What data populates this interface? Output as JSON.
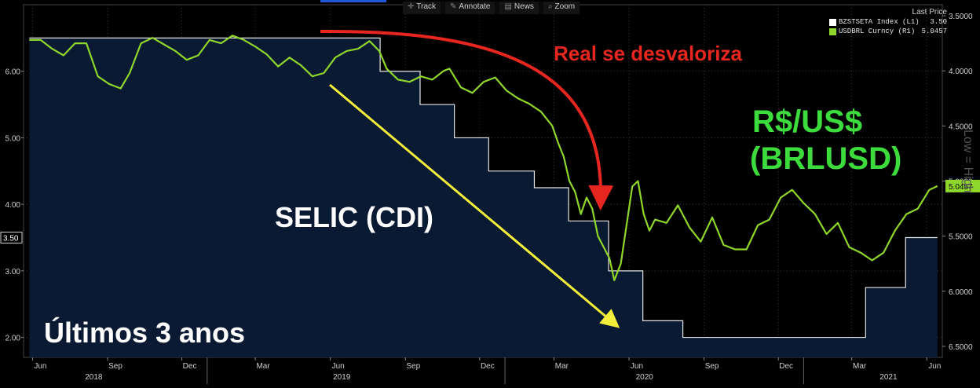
{
  "toolbar": {
    "items": [
      {
        "label": "Track"
      },
      {
        "label": "Annotate"
      },
      {
        "label": "News"
      },
      {
        "label": "Zoom"
      }
    ]
  },
  "legend": {
    "header": "Last Price",
    "entries": [
      {
        "label": "BZSTSETA Index  (L1)",
        "value": "3.50",
        "color": "#ffffff"
      },
      {
        "label": "USDBRL Curncy  (R1)",
        "value": "5.0457",
        "color": "#8fd62b"
      }
    ]
  },
  "annotations": {
    "real_label": "Real se desvaloriza",
    "rs_label_line1": "R$/US$",
    "rs_label_line2": "(BRLUSD)",
    "selic_label": "SELIC (CDI)",
    "period_label": "Últimos 3 anos",
    "low_high": "Low = High"
  },
  "colors": {
    "background": "#000000",
    "area_fill": "#0b1a33",
    "selic_line": "#e6e6e6",
    "brl_line": "#8fd62b",
    "red_arrow": "#e6261f",
    "yellow_arrow": "#f2ee3a",
    "green_text": "#3ddc3d",
    "grid": "#3a3a3a"
  },
  "chart_data": {
    "type": "line",
    "x_ticks": [
      "Jun",
      "Sep",
      "Dec",
      "Mar",
      "Jun",
      "Sep",
      "Dec",
      "Mar",
      "Jun",
      "Sep",
      "Dec",
      "Mar",
      "Jun"
    ],
    "years": [
      "2018",
      "2019",
      "2020",
      "2021"
    ],
    "left_axis": {
      "ticks": [
        "2.00",
        "3.00",
        "4.00",
        "5.00",
        "6.00"
      ],
      "ylim": [
        1.7,
        7.0
      ],
      "last_value_tag": "3.50"
    },
    "right_axis": {
      "ticks": [
        "3.5000",
        "4.0000",
        "4.5000",
        "5.0000",
        "5.5000",
        "6.0000",
        "6.5000"
      ],
      "ylim": [
        3.4,
        6.6
      ],
      "inverted": true,
      "last_value_tag": "5.0457"
    },
    "series": [
      {
        "name": "BZSTSETA Index",
        "axis": "left",
        "style": "step-area",
        "points": [
          [
            "2018-05-28",
            6.5
          ],
          [
            "2019-07-31",
            6.5
          ],
          [
            "2019-08-01",
            6.0
          ],
          [
            "2019-09-19",
            5.5
          ],
          [
            "2019-10-31",
            5.0
          ],
          [
            "2019-12-12",
            4.5
          ],
          [
            "2020-02-06",
            4.25
          ],
          [
            "2020-03-19",
            3.75
          ],
          [
            "2020-05-07",
            3.0
          ],
          [
            "2020-06-18",
            2.25
          ],
          [
            "2020-08-06",
            2.0
          ],
          [
            "2021-03-18",
            2.75
          ],
          [
            "2021-05-06",
            3.5
          ],
          [
            "2021-06-14",
            3.5
          ]
        ]
      },
      {
        "name": "USDBRL Curncy",
        "axis": "right",
        "style": "line",
        "points": [
          [
            "2018-05-28",
            3.72
          ],
          [
            "2018-06-11",
            3.72
          ],
          [
            "2018-06-25",
            3.8
          ],
          [
            "2018-07-09",
            3.86
          ],
          [
            "2018-07-23",
            3.75
          ],
          [
            "2018-08-06",
            3.75
          ],
          [
            "2018-08-20",
            4.05
          ],
          [
            "2018-09-03",
            4.12
          ],
          [
            "2018-09-17",
            4.16
          ],
          [
            "2018-09-28",
            4.02
          ],
          [
            "2018-10-12",
            3.75
          ],
          [
            "2018-10-26",
            3.7
          ],
          [
            "2018-11-09",
            3.76
          ],
          [
            "2018-11-23",
            3.82
          ],
          [
            "2018-12-07",
            3.9
          ],
          [
            "2018-12-21",
            3.86
          ],
          [
            "2019-01-04",
            3.72
          ],
          [
            "2019-01-18",
            3.75
          ],
          [
            "2019-02-01",
            3.68
          ],
          [
            "2019-02-15",
            3.72
          ],
          [
            "2019-03-01",
            3.78
          ],
          [
            "2019-03-15",
            3.85
          ],
          [
            "2019-03-29",
            3.96
          ],
          [
            "2019-04-12",
            3.88
          ],
          [
            "2019-04-26",
            3.95
          ],
          [
            "2019-05-10",
            4.05
          ],
          [
            "2019-05-24",
            4.02
          ],
          [
            "2019-06-07",
            3.88
          ],
          [
            "2019-06-21",
            3.82
          ],
          [
            "2019-07-05",
            3.8
          ],
          [
            "2019-07-19",
            3.73
          ],
          [
            "2019-07-31",
            3.82
          ],
          [
            "2019-08-09",
            3.98
          ],
          [
            "2019-08-23",
            4.08
          ],
          [
            "2019-09-06",
            4.1
          ],
          [
            "2019-09-20",
            4.05
          ],
          [
            "2019-10-04",
            4.08
          ],
          [
            "2019-10-18",
            4.0
          ],
          [
            "2019-10-25",
            3.98
          ],
          [
            "2019-11-08",
            4.15
          ],
          [
            "2019-11-22",
            4.2
          ],
          [
            "2019-12-06",
            4.1
          ],
          [
            "2019-12-20",
            4.06
          ],
          [
            "2020-01-03",
            4.18
          ],
          [
            "2020-01-17",
            4.25
          ],
          [
            "2020-01-31",
            4.3
          ],
          [
            "2020-02-14",
            4.37
          ],
          [
            "2020-02-28",
            4.5
          ],
          [
            "2020-03-06",
            4.65
          ],
          [
            "2020-03-13",
            4.78
          ],
          [
            "2020-03-20",
            5.0
          ],
          [
            "2020-03-27",
            5.1
          ],
          [
            "2020-04-03",
            5.3
          ],
          [
            "2020-04-10",
            5.15
          ],
          [
            "2020-04-17",
            5.25
          ],
          [
            "2020-04-24",
            5.5
          ],
          [
            "2020-05-01",
            5.6
          ],
          [
            "2020-05-08",
            5.7
          ],
          [
            "2020-05-14",
            5.9
          ],
          [
            "2020-05-22",
            5.75
          ],
          [
            "2020-05-29",
            5.4
          ],
          [
            "2020-06-05",
            5.05
          ],
          [
            "2020-06-12",
            5.0
          ],
          [
            "2020-06-19",
            5.3
          ],
          [
            "2020-06-26",
            5.45
          ],
          [
            "2020-07-03",
            5.35
          ],
          [
            "2020-07-17",
            5.38
          ],
          [
            "2020-07-31",
            5.22
          ],
          [
            "2020-08-14",
            5.42
          ],
          [
            "2020-08-28",
            5.55
          ],
          [
            "2020-09-11",
            5.33
          ],
          [
            "2020-09-25",
            5.58
          ],
          [
            "2020-10-09",
            5.62
          ],
          [
            "2020-10-23",
            5.62
          ],
          [
            "2020-11-06",
            5.4
          ],
          [
            "2020-11-20",
            5.35
          ],
          [
            "2020-12-04",
            5.15
          ],
          [
            "2020-12-18",
            5.08
          ],
          [
            "2021-01-01",
            5.2
          ],
          [
            "2021-01-15",
            5.3
          ],
          [
            "2021-01-29",
            5.48
          ],
          [
            "2021-02-12",
            5.38
          ],
          [
            "2021-02-26",
            5.6
          ],
          [
            "2021-03-12",
            5.65
          ],
          [
            "2021-03-26",
            5.72
          ],
          [
            "2021-04-09",
            5.65
          ],
          [
            "2021-04-23",
            5.45
          ],
          [
            "2021-05-07",
            5.3
          ],
          [
            "2021-05-21",
            5.25
          ],
          [
            "2021-06-04",
            5.08
          ],
          [
            "2021-06-14",
            5.0457
          ]
        ]
      }
    ]
  }
}
